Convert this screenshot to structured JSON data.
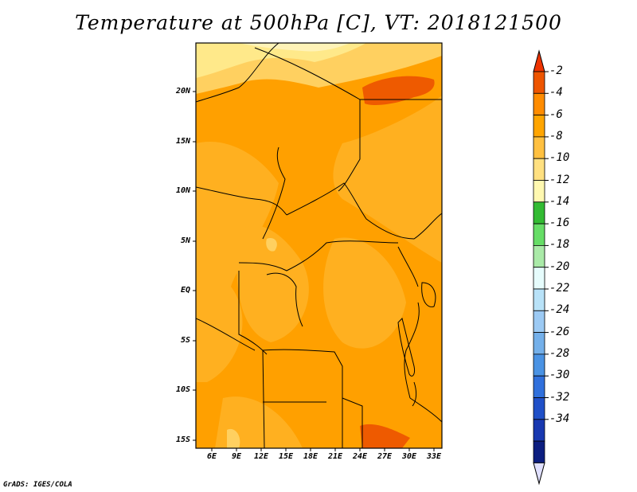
{
  "title": "Temperature at 500hPa [C], VT: 2018121500",
  "credit": "GrADS: IGES/COLA",
  "chart_data": {
    "type": "heatmap",
    "variable": "Temperature at 500hPa",
    "units": "C",
    "valid_time": "2018121500",
    "lon_range": [
      4,
      34
    ],
    "lat_range": [
      -16,
      25
    ],
    "x_ticks": [
      "6E",
      "9E",
      "12E",
      "15E",
      "18E",
      "21E",
      "24E",
      "27E",
      "30E",
      "33E"
    ],
    "y_ticks": [
      "20N",
      "15N",
      "10N",
      "5N",
      "EQ",
      "5S",
      "10S",
      "15S"
    ],
    "dominant_range": [
      -8,
      -4
    ],
    "colorbar": {
      "labels": [
        "-2",
        "-4",
        "-6",
        "-8",
        "-10",
        "-12",
        "-14",
        "-16",
        "-18",
        "-20",
        "-22",
        "-24",
        "-26",
        "-28",
        "-30",
        "-32",
        "-34"
      ],
      "colors": [
        "#ee5500",
        "#ff8c00",
        "#ffa500",
        "#ffc040",
        "#ffe080",
        "#fff8b0",
        "#33bb33",
        "#66dd66",
        "#aaeaa8",
        "#e6fcfc",
        "#b8e2f8",
        "#9ccaf4",
        "#74b0ea",
        "#4a93e4",
        "#3070dc",
        "#2050c8",
        "#1838b0",
        "#0c1e80"
      ],
      "top_color": "#ee3300",
      "bottom_color": "#e0e0ff"
    }
  }
}
